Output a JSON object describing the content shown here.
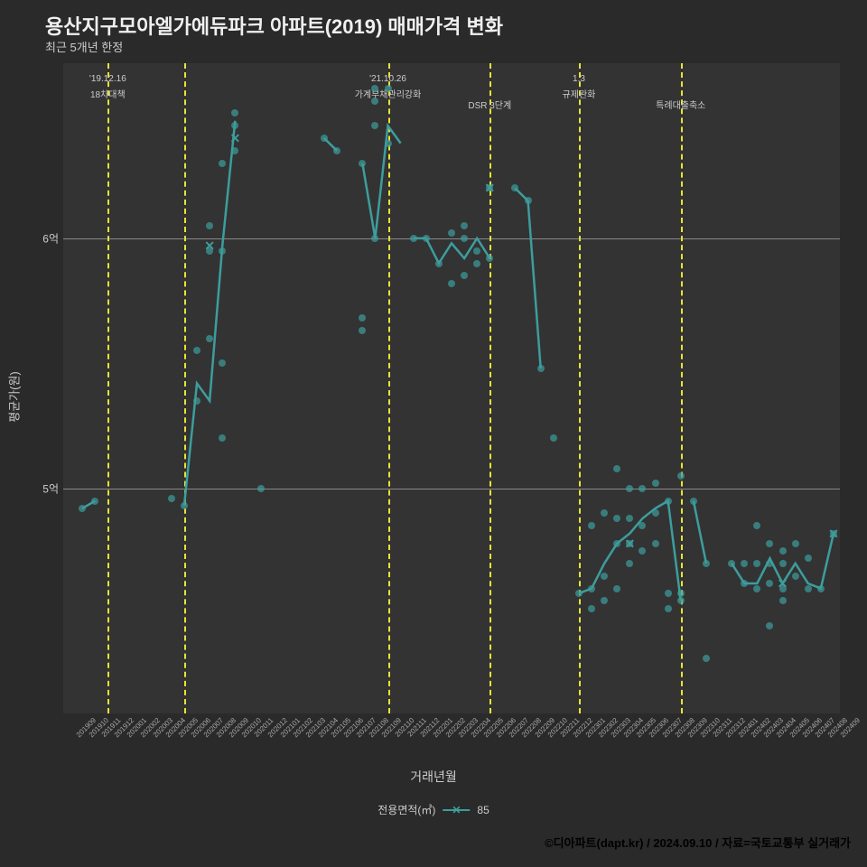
{
  "title": "용산지구모아엘가에듀파크 아파트(2019) 매매가격 변화",
  "subtitle": "최근 5개년 한정",
  "xlabel": "거래년월",
  "ylabel": "평균가(원)",
  "legend_title": "전용면적(㎡)",
  "legend_item": "85",
  "credit": "©디아파트(dapt.kr) / 2024.09.10 / 자료=국토교통부 실거래가",
  "colors": {
    "background": "#2a2a2a",
    "plot_bg": "#333333",
    "text": "#cccccc",
    "title_text": "#f0f0f0",
    "grid": "#888888",
    "series": "#3d9d9d",
    "vline": "#e8e337",
    "credit": "#000000"
  },
  "ylim": [
    4.1,
    6.7
  ],
  "yticks": [
    {
      "value": 5.0,
      "label": "5억"
    },
    {
      "value": 6.0,
      "label": "6억"
    }
  ],
  "x_categories": [
    "201909",
    "201910",
    "201911",
    "201912",
    "202001",
    "202002",
    "202003",
    "202004",
    "202005",
    "202006",
    "202007",
    "202008",
    "202009",
    "202010",
    "202011",
    "202012",
    "202101",
    "202102",
    "202103",
    "202104",
    "202105",
    "202106",
    "202107",
    "202108",
    "202109",
    "202110",
    "202111",
    "202112",
    "202201",
    "202202",
    "202203",
    "202204",
    "202205",
    "202206",
    "202207",
    "202208",
    "202209",
    "202210",
    "202211",
    "202212",
    "202301",
    "202302",
    "202303",
    "202304",
    "202305",
    "202306",
    "202307",
    "202308",
    "202309",
    "202310",
    "202311",
    "202312",
    "202401",
    "202402",
    "202403",
    "202404",
    "202405",
    "202406",
    "202407",
    "202408",
    "202409"
  ],
  "vlines": [
    {
      "x_index": 3,
      "label1": "'19.12.16",
      "label2": "18차대책"
    },
    {
      "x_index": 9,
      "label1": "",
      "label2": ""
    },
    {
      "x_index": 25,
      "label1": "'21.10.26",
      "label2": "가계부채관리강화"
    },
    {
      "x_index": 33,
      "label1": "",
      "label2": "DSR 3단계"
    },
    {
      "x_index": 40,
      "label1": "1.3",
      "label2": "규제완화"
    },
    {
      "x_index": 48,
      "label1": "",
      "label2": "특례대출축소"
    }
  ],
  "scatter_points": [
    {
      "x": 1,
      "y": 4.92
    },
    {
      "x": 2,
      "y": 4.95
    },
    {
      "x": 8,
      "y": 4.96
    },
    {
      "x": 9,
      "y": 4.93
    },
    {
      "x": 10,
      "y": 5.55
    },
    {
      "x": 10,
      "y": 5.35
    },
    {
      "x": 11,
      "y": 5.6
    },
    {
      "x": 11,
      "y": 5.95
    },
    {
      "x": 11,
      "y": 6.05
    },
    {
      "x": 12,
      "y": 5.2
    },
    {
      "x": 12,
      "y": 5.5
    },
    {
      "x": 12,
      "y": 5.95
    },
    {
      "x": 12,
      "y": 6.3
    },
    {
      "x": 13,
      "y": 6.35
    },
    {
      "x": 13,
      "y": 6.45
    },
    {
      "x": 13,
      "y": 6.5
    },
    {
      "x": 15,
      "y": 5.0
    },
    {
      "x": 20,
      "y": 6.4
    },
    {
      "x": 21,
      "y": 6.35
    },
    {
      "x": 23,
      "y": 6.3
    },
    {
      "x": 23,
      "y": 5.63
    },
    {
      "x": 23,
      "y": 5.68
    },
    {
      "x": 24,
      "y": 6.0
    },
    {
      "x": 24,
      "y": 6.6
    },
    {
      "x": 24,
      "y": 6.55
    },
    {
      "x": 24,
      "y": 6.45
    },
    {
      "x": 25,
      "y": 6.6
    },
    {
      "x": 25,
      "y": 6.38
    },
    {
      "x": 27,
      "y": 6.0
    },
    {
      "x": 28,
      "y": 6.0
    },
    {
      "x": 29,
      "y": 5.9
    },
    {
      "x": 30,
      "y": 5.82
    },
    {
      "x": 30,
      "y": 6.02
    },
    {
      "x": 31,
      "y": 5.85
    },
    {
      "x": 31,
      "y": 6.0
    },
    {
      "x": 31,
      "y": 6.05
    },
    {
      "x": 32,
      "y": 5.9
    },
    {
      "x": 32,
      "y": 5.95
    },
    {
      "x": 33,
      "y": 5.92
    },
    {
      "x": 33,
      "y": 6.2
    },
    {
      "x": 35,
      "y": 6.2
    },
    {
      "x": 36,
      "y": 6.15
    },
    {
      "x": 37,
      "y": 5.48
    },
    {
      "x": 38,
      "y": 5.2
    },
    {
      "x": 40,
      "y": 4.58
    },
    {
      "x": 41,
      "y": 4.52
    },
    {
      "x": 41,
      "y": 4.6
    },
    {
      "x": 41,
      "y": 4.85
    },
    {
      "x": 42,
      "y": 4.55
    },
    {
      "x": 42,
      "y": 4.65
    },
    {
      "x": 42,
      "y": 4.9
    },
    {
      "x": 43,
      "y": 4.6
    },
    {
      "x": 43,
      "y": 4.78
    },
    {
      "x": 43,
      "y": 4.88
    },
    {
      "x": 43,
      "y": 5.08
    },
    {
      "x": 44,
      "y": 4.7
    },
    {
      "x": 44,
      "y": 4.78
    },
    {
      "x": 44,
      "y": 4.88
    },
    {
      "x": 44,
      "y": 5.0
    },
    {
      "x": 45,
      "y": 4.75
    },
    {
      "x": 45,
      "y": 4.85
    },
    {
      "x": 45,
      "y": 5.0
    },
    {
      "x": 46,
      "y": 4.78
    },
    {
      "x": 46,
      "y": 4.9
    },
    {
      "x": 46,
      "y": 5.02
    },
    {
      "x": 47,
      "y": 4.95
    },
    {
      "x": 47,
      "y": 4.58
    },
    {
      "x": 47,
      "y": 4.52
    },
    {
      "x": 48,
      "y": 4.55
    },
    {
      "x": 48,
      "y": 4.58
    },
    {
      "x": 48,
      "y": 5.05
    },
    {
      "x": 49,
      "y": 4.95
    },
    {
      "x": 50,
      "y": 4.32
    },
    {
      "x": 50,
      "y": 4.7
    },
    {
      "x": 52,
      "y": 4.7
    },
    {
      "x": 53,
      "y": 4.7
    },
    {
      "x": 53,
      "y": 4.62
    },
    {
      "x": 54,
      "y": 4.6
    },
    {
      "x": 54,
      "y": 4.7
    },
    {
      "x": 54,
      "y": 4.85
    },
    {
      "x": 55,
      "y": 4.62
    },
    {
      "x": 55,
      "y": 4.7
    },
    {
      "x": 55,
      "y": 4.78
    },
    {
      "x": 55,
      "y": 4.45
    },
    {
      "x": 56,
      "y": 4.6
    },
    {
      "x": 56,
      "y": 4.55
    },
    {
      "x": 56,
      "y": 4.7
    },
    {
      "x": 56,
      "y": 4.75
    },
    {
      "x": 57,
      "y": 4.65
    },
    {
      "x": 57,
      "y": 4.78
    },
    {
      "x": 58,
      "y": 4.6
    },
    {
      "x": 58,
      "y": 4.72
    },
    {
      "x": 59,
      "y": 4.6
    },
    {
      "x": 60,
      "y": 4.82
    }
  ],
  "line_points": [
    {
      "x": 1,
      "y": 4.92
    },
    {
      "x": 2,
      "y": 4.95
    }
  ],
  "line_points2": [
    {
      "x": 9,
      "y": 4.93
    },
    {
      "x": 10,
      "y": 5.42
    },
    {
      "x": 11,
      "y": 5.35
    },
    {
      "x": 12,
      "y": 5.97
    },
    {
      "x": 13,
      "y": 6.47
    }
  ],
  "line_points3": [
    {
      "x": 20,
      "y": 6.4
    },
    {
      "x": 21,
      "y": 6.35
    }
  ],
  "line_points4": [
    {
      "x": 23,
      "y": 6.3
    },
    {
      "x": 24,
      "y": 6.0
    },
    {
      "x": 25,
      "y": 6.45
    },
    {
      "x": 26,
      "y": 6.38
    }
  ],
  "line_points5": [
    {
      "x": 27,
      "y": 6.0
    },
    {
      "x": 28,
      "y": 6.0
    },
    {
      "x": 29,
      "y": 5.9
    },
    {
      "x": 30,
      "y": 5.98
    },
    {
      "x": 31,
      "y": 5.92
    },
    {
      "x": 32,
      "y": 6.0
    },
    {
      "x": 33,
      "y": 5.92
    }
  ],
  "line_points6": [
    {
      "x": 35,
      "y": 6.2
    },
    {
      "x": 36,
      "y": 6.15
    },
    {
      "x": 37,
      "y": 5.48
    }
  ],
  "line_points7": [
    {
      "x": 40,
      "y": 4.58
    },
    {
      "x": 41,
      "y": 4.6
    },
    {
      "x": 42,
      "y": 4.7
    },
    {
      "x": 43,
      "y": 4.78
    },
    {
      "x": 44,
      "y": 4.82
    },
    {
      "x": 45,
      "y": 4.88
    },
    {
      "x": 46,
      "y": 4.92
    },
    {
      "x": 47,
      "y": 4.95
    },
    {
      "x": 48,
      "y": 4.55
    }
  ],
  "line_points8": [
    {
      "x": 49,
      "y": 4.95
    },
    {
      "x": 50,
      "y": 4.7
    }
  ],
  "line_points9": [
    {
      "x": 52,
      "y": 4.7
    },
    {
      "x": 53,
      "y": 4.62
    },
    {
      "x": 54,
      "y": 4.62
    },
    {
      "x": 55,
      "y": 4.72
    },
    {
      "x": 56,
      "y": 4.62
    },
    {
      "x": 57,
      "y": 4.7
    },
    {
      "x": 58,
      "y": 4.62
    },
    {
      "x": 59,
      "y": 4.6
    },
    {
      "x": 60,
      "y": 4.82
    }
  ],
  "x_markers": [
    {
      "x": 11,
      "y": 5.97
    },
    {
      "x": 13,
      "y": 6.4
    },
    {
      "x": 33,
      "y": 6.2
    },
    {
      "x": 44,
      "y": 4.78
    },
    {
      "x": 56,
      "y": 4.62
    },
    {
      "x": 60,
      "y": 4.82
    }
  ]
}
